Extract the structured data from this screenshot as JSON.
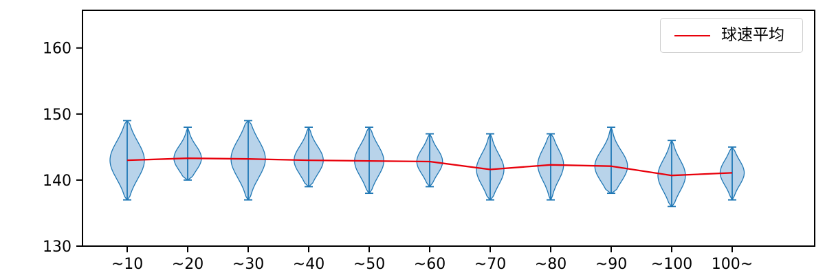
{
  "chart_data": {
    "type": "violin",
    "title": "",
    "xlabel": "",
    "ylabel": "",
    "categories": [
      "~10",
      "~20",
      "~30",
      "~40",
      "~50",
      "~60",
      "~70",
      "~80",
      "~90",
      "~100",
      "100~"
    ],
    "violins": [
      {
        "category": "~10",
        "min": 137,
        "max": 149,
        "mean": 143.0,
        "width": 1.0
      },
      {
        "category": "~20",
        "min": 140,
        "max": 148,
        "mean": 143.3,
        "width": 0.8
      },
      {
        "category": "~30",
        "min": 137,
        "max": 149,
        "mean": 143.2,
        "width": 1.0
      },
      {
        "category": "~40",
        "min": 139,
        "max": 148,
        "mean": 143.0,
        "width": 0.85
      },
      {
        "category": "~50",
        "min": 138,
        "max": 148,
        "mean": 142.9,
        "width": 0.85
      },
      {
        "category": "~60",
        "min": 139,
        "max": 147,
        "mean": 142.8,
        "width": 0.75
      },
      {
        "category": "~70",
        "min": 137,
        "max": 147,
        "mean": 141.6,
        "width": 0.8
      },
      {
        "category": "~80",
        "min": 137,
        "max": 147,
        "mean": 142.3,
        "width": 0.75
      },
      {
        "category": "~90",
        "min": 138,
        "max": 148,
        "mean": 142.1,
        "width": 0.95
      },
      {
        "category": "~100",
        "min": 136,
        "max": 146,
        "mean": 140.7,
        "width": 0.8
      },
      {
        "category": "100~",
        "min": 137,
        "max": 145,
        "mean": 141.1,
        "width": 0.7
      }
    ],
    "mean_line": {
      "name": "球速平均",
      "values": [
        143.0,
        143.3,
        143.2,
        143.0,
        142.9,
        142.8,
        141.6,
        142.3,
        142.1,
        140.7,
        141.1
      ]
    },
    "ylim": [
      130,
      165.7
    ],
    "yticks": [
      130,
      140,
      150,
      160
    ],
    "grid": false,
    "legend": {
      "label": "球速平均",
      "position": "top-right"
    },
    "colors": {
      "violin_fill": "#b8d3ea",
      "violin_edge": "#1f77b4",
      "whisker": "#1f77b4",
      "mean_line": "#e8000b",
      "axis": "#000000",
      "tick_label": "#000000"
    }
  }
}
